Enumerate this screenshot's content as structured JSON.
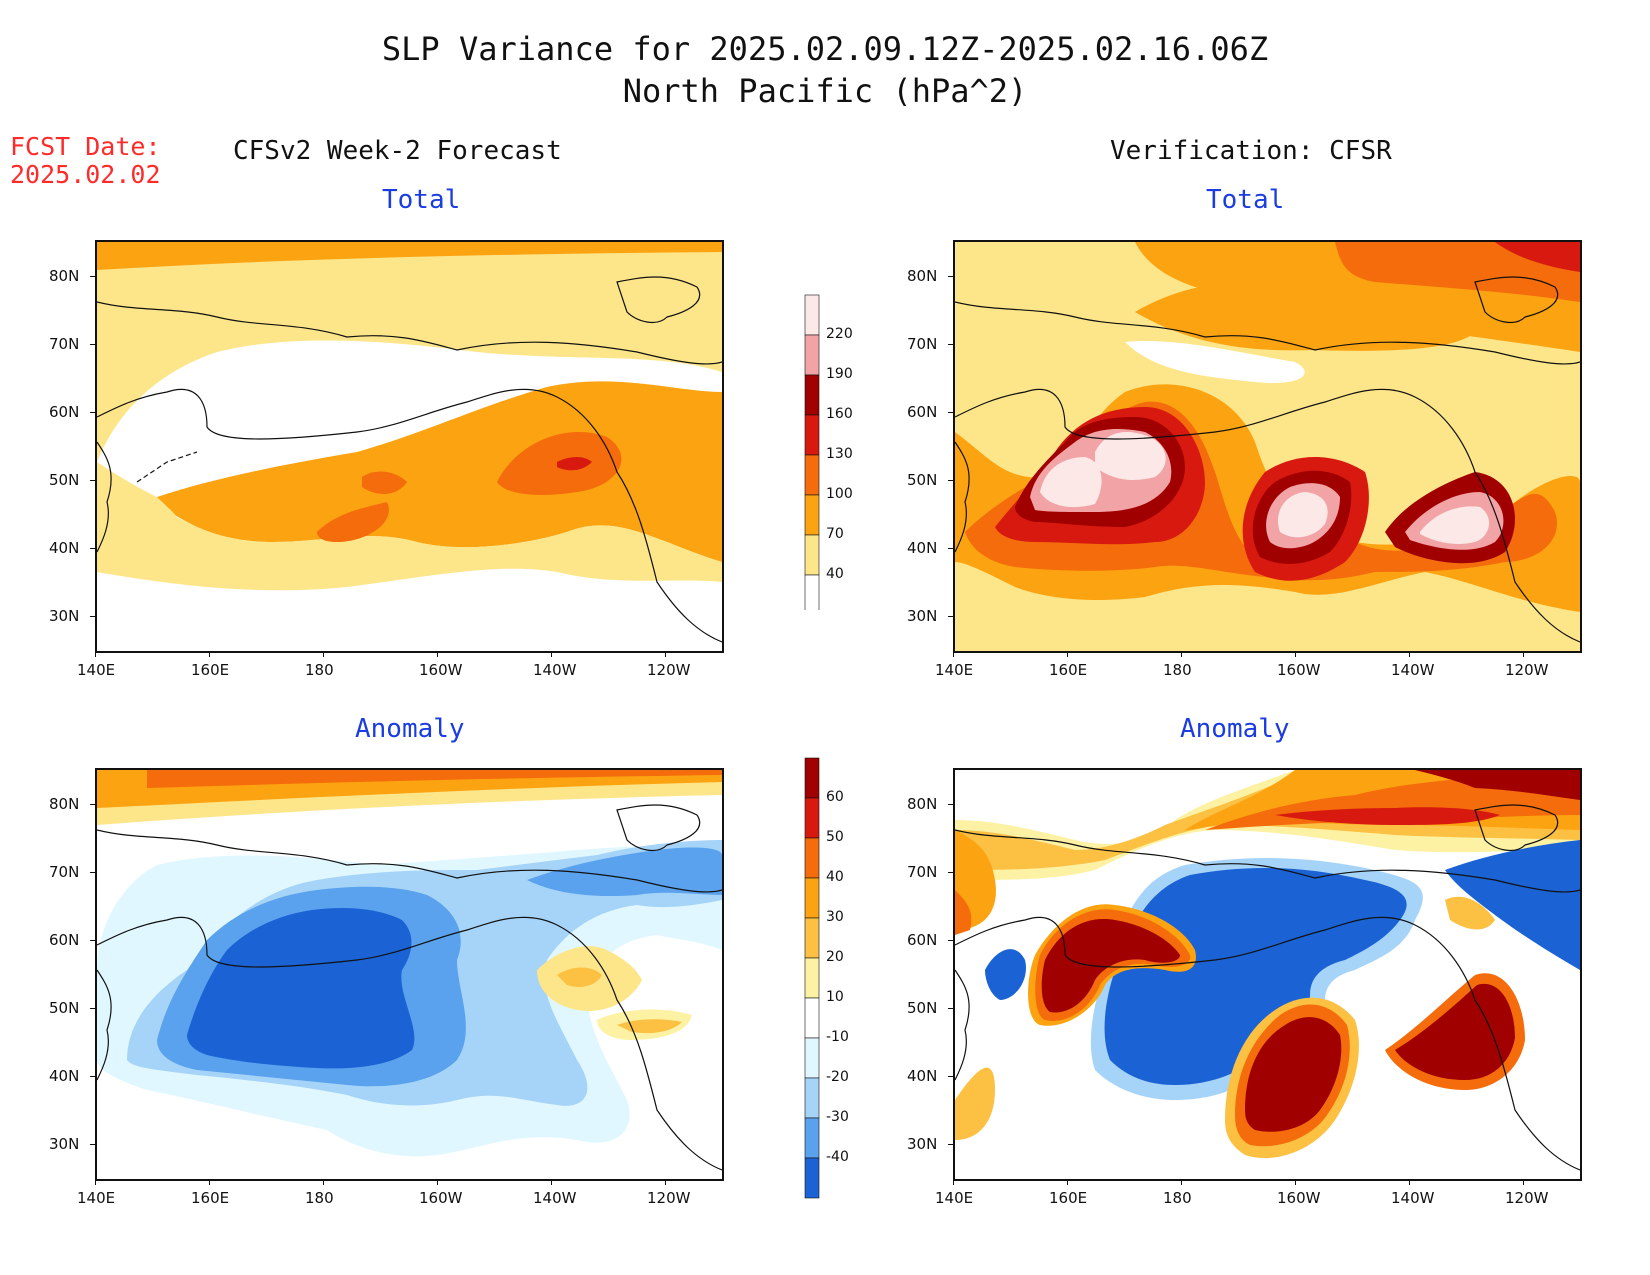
{
  "title": {
    "line1": "SLP Variance for 2025.02.09.12Z-2025.02.16.06Z",
    "line2": "North Pacific (hPa^2)"
  },
  "fcst_label": {
    "line1": "FCST Date:",
    "line2": "2025.02.02"
  },
  "columns": {
    "left": "CFSv2 Week-2 Forecast",
    "right": "Verification: CFSR"
  },
  "panel_titles": {
    "total": "Total",
    "anomaly": "Anomaly"
  },
  "axes": {
    "lat_labels": [
      "80N",
      "70N",
      "60N",
      "50N",
      "40N",
      "30N"
    ],
    "lon_labels": [
      "140E",
      "160E",
      "180",
      "160W",
      "140W",
      "120W"
    ]
  },
  "colorbars": {
    "total": {
      "levels": [
        "40",
        "70",
        "100",
        "130",
        "160",
        "190",
        "220"
      ],
      "colors": [
        "#ffffff",
        "#fde68a",
        "#fca311",
        "#f46c0b",
        "#d7190f",
        "#a10000",
        "#f2a3a6",
        "#fde8e8"
      ]
    },
    "anomaly": {
      "levels": [
        "60",
        "50",
        "40",
        "30",
        "20",
        "10",
        "-10",
        "-20",
        "-30",
        "-40"
      ],
      "colors": [
        "#a00000",
        "#d7190f",
        "#f46c0b",
        "#fca311",
        "#fcc043",
        "#fdf1a3",
        "#ffffff",
        "#e0f7ff",
        "#a6d4f8",
        "#5aa2ed",
        "#1b62d4"
      ]
    }
  },
  "colors": {
    "fcst_date": "#ff2a2a",
    "subtitle": "#1a3ce0"
  }
}
